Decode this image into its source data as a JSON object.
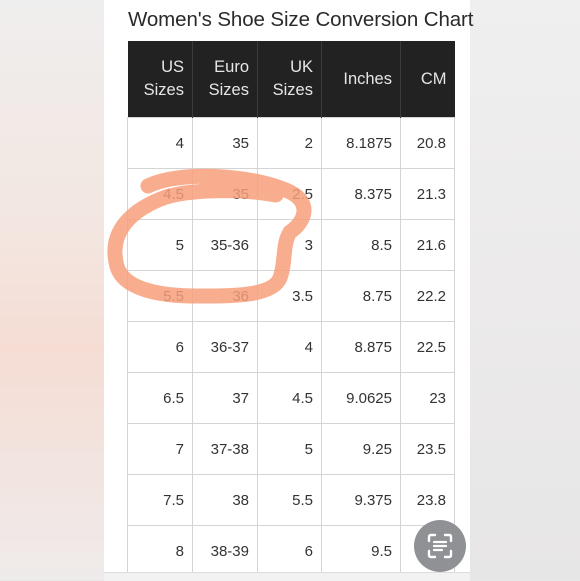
{
  "title": "Women's Shoe Size Conversion Chart",
  "columns": [
    {
      "line1": "US",
      "line2": "Sizes"
    },
    {
      "line1": "Euro",
      "line2": "Sizes"
    },
    {
      "line1": "UK",
      "line2": "Sizes"
    },
    {
      "line1": "Inches",
      "line2": ""
    },
    {
      "line1": "CM",
      "line2": ""
    }
  ],
  "rows": [
    [
      "4",
      "35",
      "2",
      "8.1875",
      "20.8"
    ],
    [
      "4.5",
      "35",
      "2.5",
      "8.375",
      "21.3"
    ],
    [
      "5",
      "35-36",
      "3",
      "8.5",
      "21.6"
    ],
    [
      "5.5",
      "36",
      "3.5",
      "8.75",
      "22.2"
    ],
    [
      "6",
      "36-37",
      "4",
      "8.875",
      "22.5"
    ],
    [
      "6.5",
      "37",
      "4.5",
      "9.0625",
      "23"
    ],
    [
      "7",
      "37-38",
      "5",
      "9.25",
      "23.5"
    ],
    [
      "7.5",
      "38",
      "5.5",
      "9.375",
      "23.8"
    ],
    [
      "8",
      "38-39",
      "6",
      "9.5",
      ""
    ]
  ],
  "annotation": {
    "color": "#f7a07a",
    "icon": "hand-drawn-circle"
  },
  "scan_button": {
    "icon": "document-scan-icon",
    "color": "#8f9194"
  }
}
